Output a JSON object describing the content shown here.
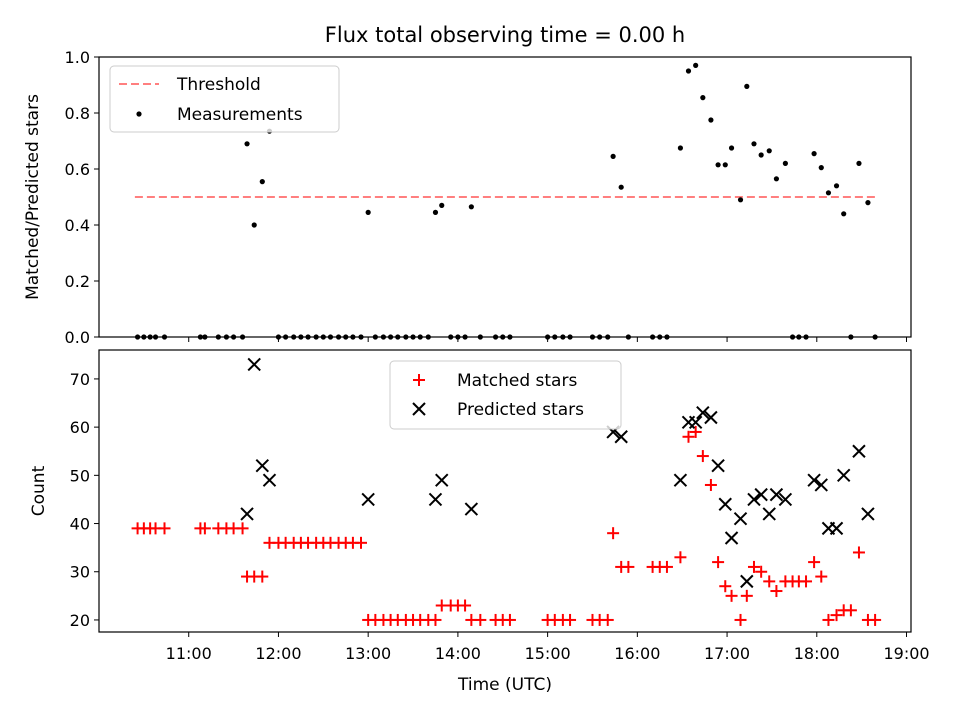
{
  "figure": {
    "title": "Flux total observing time = 0.00 h"
  },
  "chart_data": [
    {
      "type": "scatter",
      "ylabel": "Matched/Predicted stars",
      "xlim": [
        10.0,
        19.05
      ],
      "ylim": [
        0.0,
        1.0
      ],
      "yticks": [
        "0.0",
        "0.2",
        "0.4",
        "0.6",
        "0.8",
        "1.0"
      ],
      "legend_position": "upper-left",
      "threshold": {
        "name": "Threshold",
        "value": 0.5,
        "x_range": [
          10.4,
          18.67
        ],
        "color": "#ff7f7f"
      },
      "series": [
        {
          "name": "Measurements",
          "color": "#000000",
          "points": [
            [
              10.43,
              0.0
            ],
            [
              10.5,
              0.0
            ],
            [
              10.57,
              0.0
            ],
            [
              10.63,
              0.0
            ],
            [
              10.73,
              0.0
            ],
            [
              11.13,
              0.0
            ],
            [
              11.18,
              0.0
            ],
            [
              11.33,
              0.0
            ],
            [
              11.42,
              0.0
            ],
            [
              11.5,
              0.0
            ],
            [
              11.6,
              0.0
            ],
            [
              11.65,
              0.69
            ],
            [
              11.73,
              0.4
            ],
            [
              11.82,
              0.555
            ],
            [
              11.9,
              0.735
            ],
            [
              12.0,
              0.0
            ],
            [
              12.08,
              0.0
            ],
            [
              12.17,
              0.0
            ],
            [
              12.25,
              0.0
            ],
            [
              12.33,
              0.0
            ],
            [
              12.42,
              0.0
            ],
            [
              12.5,
              0.0
            ],
            [
              12.58,
              0.0
            ],
            [
              12.67,
              0.0
            ],
            [
              12.75,
              0.0
            ],
            [
              12.83,
              0.0
            ],
            [
              12.92,
              0.0
            ],
            [
              13.0,
              0.445
            ],
            [
              13.08,
              0.0
            ],
            [
              13.17,
              0.0
            ],
            [
              13.25,
              0.0
            ],
            [
              13.33,
              0.0
            ],
            [
              13.42,
              0.0
            ],
            [
              13.5,
              0.0
            ],
            [
              13.58,
              0.0
            ],
            [
              13.67,
              0.0
            ],
            [
              13.75,
              0.445
            ],
            [
              13.82,
              0.47
            ],
            [
              13.92,
              0.0
            ],
            [
              14.0,
              0.0
            ],
            [
              14.08,
              0.0
            ],
            [
              14.15,
              0.465
            ],
            [
              14.25,
              0.0
            ],
            [
              14.42,
              0.0
            ],
            [
              14.5,
              0.0
            ],
            [
              14.58,
              0.0
            ],
            [
              15.0,
              0.0
            ],
            [
              15.08,
              0.0
            ],
            [
              15.17,
              0.0
            ],
            [
              15.25,
              0.0
            ],
            [
              15.5,
              0.0
            ],
            [
              15.58,
              0.0
            ],
            [
              15.67,
              0.0
            ],
            [
              15.73,
              0.645
            ],
            [
              15.82,
              0.535
            ],
            [
              15.9,
              0.0
            ],
            [
              16.17,
              0.0
            ],
            [
              16.25,
              0.0
            ],
            [
              16.33,
              0.0
            ],
            [
              16.48,
              0.675
            ],
            [
              16.57,
              0.95
            ],
            [
              16.65,
              0.97
            ],
            [
              16.73,
              0.855
            ],
            [
              16.82,
              0.775
            ],
            [
              16.9,
              0.615
            ],
            [
              16.98,
              0.615
            ],
            [
              17.05,
              0.675
            ],
            [
              17.15,
              0.49
            ],
            [
              17.22,
              0.895
            ],
            [
              17.3,
              0.69
            ],
            [
              17.38,
              0.65
            ],
            [
              17.47,
              0.665
            ],
            [
              17.55,
              0.565
            ],
            [
              17.65,
              0.62
            ],
            [
              17.73,
              0.0
            ],
            [
              17.8,
              0.0
            ],
            [
              17.88,
              0.0
            ],
            [
              17.97,
              0.655
            ],
            [
              18.05,
              0.605
            ],
            [
              18.13,
              0.515
            ],
            [
              18.22,
              0.54
            ],
            [
              18.3,
              0.44
            ],
            [
              18.38,
              0.0
            ],
            [
              18.47,
              0.62
            ],
            [
              18.57,
              0.48
            ],
            [
              18.65,
              0.0
            ]
          ]
        }
      ]
    },
    {
      "type": "scatter",
      "xlabel": "Time (UTC)",
      "ylabel": "Count",
      "xlim": [
        10.0,
        19.05
      ],
      "ylim": [
        17.5,
        76.0
      ],
      "yticks": [
        "20",
        "30",
        "40",
        "50",
        "60",
        "70"
      ],
      "xticks": [
        "11:00",
        "12:00",
        "13:00",
        "14:00",
        "15:00",
        "16:00",
        "17:00",
        "18:00",
        "19:00"
      ],
      "legend_position": "upper-center",
      "series": [
        {
          "name": "Matched stars",
          "marker": "plus",
          "color": "#ff0000",
          "points": [
            [
              10.43,
              39
            ],
            [
              10.5,
              39
            ],
            [
              10.57,
              39
            ],
            [
              10.63,
              39
            ],
            [
              10.73,
              39
            ],
            [
              11.13,
              39
            ],
            [
              11.18,
              39
            ],
            [
              11.33,
              39
            ],
            [
              11.42,
              39
            ],
            [
              11.5,
              39
            ],
            [
              11.6,
              39
            ],
            [
              11.65,
              29
            ],
            [
              11.73,
              29
            ],
            [
              11.82,
              29
            ],
            [
              11.9,
              36
            ],
            [
              12.0,
              36
            ],
            [
              12.08,
              36
            ],
            [
              12.17,
              36
            ],
            [
              12.25,
              36
            ],
            [
              12.33,
              36
            ],
            [
              12.42,
              36
            ],
            [
              12.5,
              36
            ],
            [
              12.58,
              36
            ],
            [
              12.67,
              36
            ],
            [
              12.75,
              36
            ],
            [
              12.83,
              36
            ],
            [
              12.92,
              36
            ],
            [
              13.0,
              20
            ],
            [
              13.08,
              20
            ],
            [
              13.17,
              20
            ],
            [
              13.25,
              20
            ],
            [
              13.33,
              20
            ],
            [
              13.42,
              20
            ],
            [
              13.5,
              20
            ],
            [
              13.58,
              20
            ],
            [
              13.67,
              20
            ],
            [
              13.75,
              20
            ],
            [
              13.82,
              23
            ],
            [
              13.92,
              23
            ],
            [
              14.0,
              23
            ],
            [
              14.08,
              23
            ],
            [
              14.15,
              20
            ],
            [
              14.25,
              20
            ],
            [
              14.42,
              20
            ],
            [
              14.5,
              20
            ],
            [
              14.58,
              20
            ],
            [
              15.0,
              20
            ],
            [
              15.08,
              20
            ],
            [
              15.17,
              20
            ],
            [
              15.25,
              20
            ],
            [
              15.5,
              20
            ],
            [
              15.58,
              20
            ],
            [
              15.67,
              20
            ],
            [
              15.73,
              38
            ],
            [
              15.82,
              31
            ],
            [
              15.9,
              31
            ],
            [
              16.17,
              31
            ],
            [
              16.25,
              31
            ],
            [
              16.33,
              31
            ],
            [
              16.48,
              33
            ],
            [
              16.57,
              58
            ],
            [
              16.65,
              59
            ],
            [
              16.73,
              54
            ],
            [
              16.82,
              48
            ],
            [
              16.9,
              32
            ],
            [
              16.98,
              27
            ],
            [
              17.05,
              25
            ],
            [
              17.15,
              20
            ],
            [
              17.22,
              25
            ],
            [
              17.3,
              31
            ],
            [
              17.38,
              30
            ],
            [
              17.47,
              28
            ],
            [
              17.55,
              26
            ],
            [
              17.65,
              28
            ],
            [
              17.73,
              28
            ],
            [
              17.8,
              28
            ],
            [
              17.88,
              28
            ],
            [
              17.97,
              32
            ],
            [
              18.05,
              29
            ],
            [
              18.13,
              20
            ],
            [
              18.22,
              21
            ],
            [
              18.3,
              22
            ],
            [
              18.38,
              22
            ],
            [
              18.47,
              34
            ],
            [
              18.57,
              20
            ],
            [
              18.65,
              20
            ]
          ]
        },
        {
          "name": "Predicted stars",
          "marker": "x",
          "color": "#000000",
          "points": [
            [
              11.65,
              42
            ],
            [
              11.73,
              73
            ],
            [
              11.82,
              52
            ],
            [
              11.9,
              49
            ],
            [
              13.0,
              45
            ],
            [
              13.75,
              45
            ],
            [
              13.82,
              49
            ],
            [
              14.15,
              43
            ],
            [
              15.73,
              59
            ],
            [
              15.82,
              58
            ],
            [
              16.48,
              49
            ],
            [
              16.57,
              61
            ],
            [
              16.65,
              61
            ],
            [
              16.73,
              63
            ],
            [
              16.82,
              62
            ],
            [
              16.9,
              52
            ],
            [
              16.98,
              44
            ],
            [
              17.05,
              37
            ],
            [
              17.15,
              41
            ],
            [
              17.22,
              28
            ],
            [
              17.3,
              45
            ],
            [
              17.38,
              46
            ],
            [
              17.47,
              42
            ],
            [
              17.55,
              46
            ],
            [
              17.65,
              45
            ],
            [
              17.97,
              49
            ],
            [
              18.05,
              48
            ],
            [
              18.13,
              39
            ],
            [
              18.22,
              39
            ],
            [
              18.3,
              50
            ],
            [
              18.47,
              55
            ],
            [
              18.57,
              42
            ]
          ]
        }
      ]
    }
  ]
}
